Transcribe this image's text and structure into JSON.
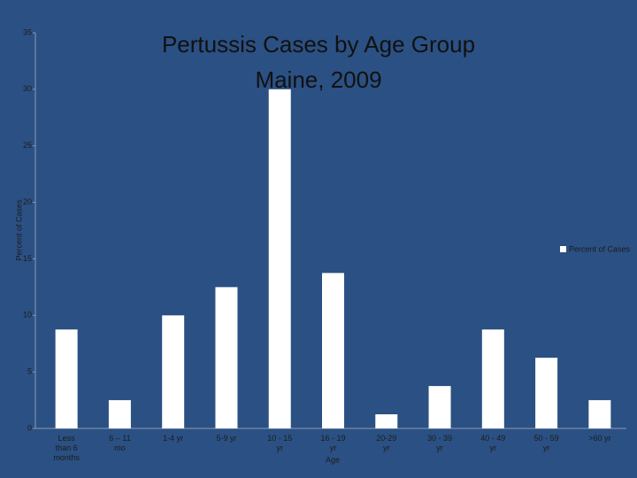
{
  "chart_data": {
    "type": "bar",
    "title": [
      "Pertussis Cases by Age Group",
      "Maine, 2009"
    ],
    "x_label": "Age",
    "y_label": "Percent of Cases",
    "categories": [
      "Less than 6 months",
      "6 – 11 mo",
      "1-4 yr",
      "5-9 yr",
      "10 - 15 yr",
      "16 - 19 yr",
      "20-29 yr",
      "30 - 39 yr",
      "40 - 49 yr",
      "50 - 59 yr",
      ">60 yr"
    ],
    "series": [
      {
        "name": "Percent of Cases",
        "color": "#ffffff",
        "values": [
          8.75,
          2.5,
          10,
          12.5,
          30,
          13.75,
          1.25,
          3.75,
          8.75,
          6.25,
          2.5
        ]
      }
    ],
    "ylim": [
      0,
      35
    ],
    "yticks": [
      0,
      5,
      10,
      15,
      20,
      25,
      30,
      35
    ],
    "legend": "right"
  }
}
